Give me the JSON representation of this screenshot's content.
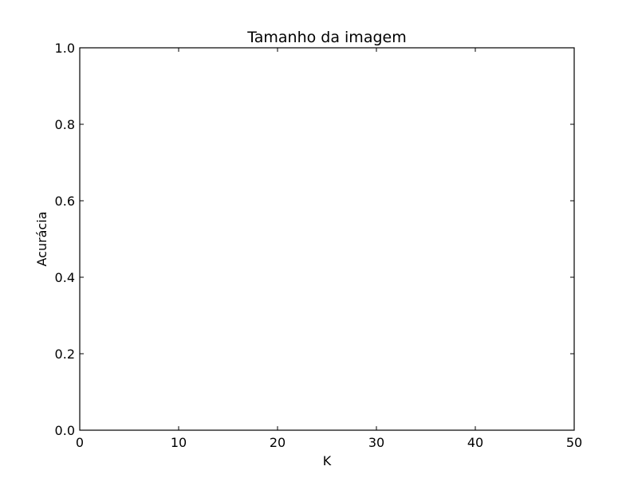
{
  "chart_data": {
    "type": "line",
    "title": "Tamanho da imagem",
    "xlabel": "K",
    "ylabel": "Acurácia",
    "xlim": [
      0,
      50
    ],
    "ylim": [
      0.0,
      1.0
    ],
    "xticks": [
      "0",
      "10",
      "20",
      "30",
      "40",
      "50"
    ],
    "yticks": [
      "0.0",
      "0.2",
      "0.4",
      "0.6",
      "0.8",
      "1.0"
    ],
    "grid": false,
    "series": []
  }
}
